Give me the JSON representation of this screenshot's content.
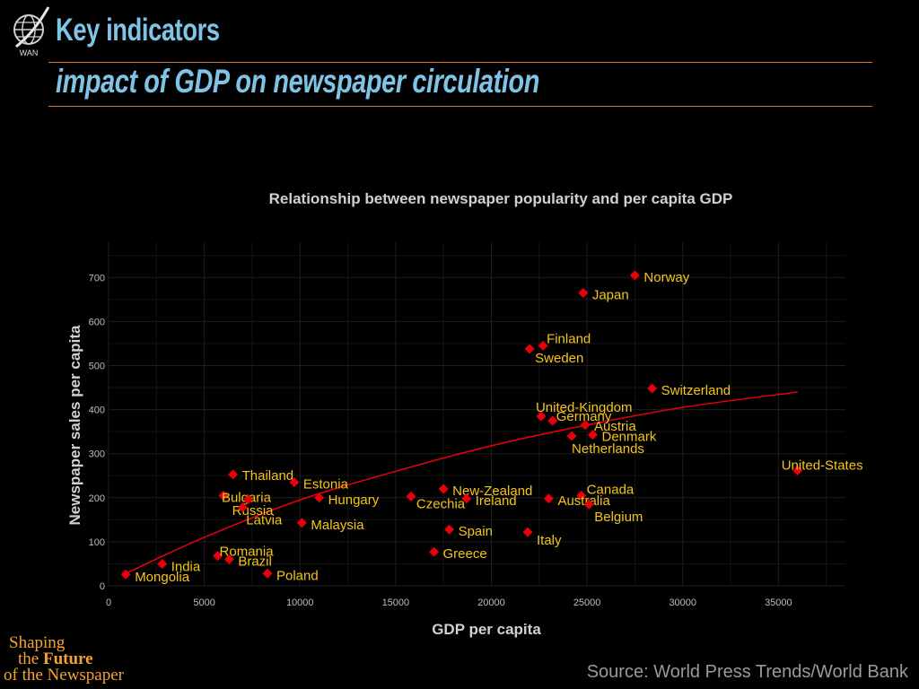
{
  "header": {
    "title": "Key indicators",
    "subtitle": "impact of GDP on newspaper circulation",
    "logo_text": "WAN"
  },
  "footer": {
    "source": "Source: World Press Trends/World Bank",
    "tagline_line1": "Shaping",
    "tagline_line2_prefix": "the",
    "tagline_line2_bold": "Future",
    "tagline_line3": "of the Newspaper"
  },
  "colors": {
    "background": "#000000",
    "title": "#7fc4e6",
    "rule": "#d9772b",
    "point": "#e8000b",
    "label": "#f5c518",
    "trend": "#e8000b",
    "tagline": "#f4a233"
  },
  "chart_data": {
    "type": "scatter",
    "title": "Relationship between newspaper popularity and per capita GDP",
    "xlabel": "GDP per capita",
    "ylabel": "Newspaper sales per capita",
    "xlim": [
      0,
      38500
    ],
    "ylim": [
      0,
      780
    ],
    "grid": true,
    "x_ticks": [
      0,
      5000,
      10000,
      15000,
      20000,
      25000,
      30000,
      35000
    ],
    "y_ticks": [
      0,
      100,
      200,
      300,
      400,
      500,
      600,
      700
    ],
    "points": [
      {
        "label": "Norway",
        "x": 27500,
        "y": 705
      },
      {
        "label": "Japan",
        "x": 24800,
        "y": 665
      },
      {
        "label": "Finland",
        "x": 22700,
        "y": 545
      },
      {
        "label": "Sweden",
        "x": 22000,
        "y": 538
      },
      {
        "label": "Switzerland",
        "x": 28400,
        "y": 448
      },
      {
        "label": "United-Kingdom",
        "x": 22600,
        "y": 385
      },
      {
        "label": "Germany",
        "x": 23200,
        "y": 375
      },
      {
        "label": "Austria",
        "x": 24900,
        "y": 365
      },
      {
        "label": "Denmark",
        "x": 25300,
        "y": 343
      },
      {
        "label": "Netherlands",
        "x": 24200,
        "y": 340
      },
      {
        "label": "United-States",
        "x": 36000,
        "y": 262
      },
      {
        "label": "Canada",
        "x": 24700,
        "y": 205
      },
      {
        "label": "Australia",
        "x": 23000,
        "y": 198
      },
      {
        "label": "Belgium",
        "x": 25100,
        "y": 185
      },
      {
        "label": "New-Zealand",
        "x": 17500,
        "y": 220
      },
      {
        "label": "Ireland",
        "x": 18700,
        "y": 198
      },
      {
        "label": "Czechia",
        "x": 15800,
        "y": 203
      },
      {
        "label": "Spain",
        "x": 17800,
        "y": 128
      },
      {
        "label": "Italy",
        "x": 21900,
        "y": 122
      },
      {
        "label": "Greece",
        "x": 17000,
        "y": 77
      },
      {
        "label": "Thailand",
        "x": 6500,
        "y": 253
      },
      {
        "label": "Estonia",
        "x": 9700,
        "y": 235
      },
      {
        "label": "Hungary",
        "x": 11000,
        "y": 200
      },
      {
        "label": "Bulgaria",
        "x": 6000,
        "y": 205
      },
      {
        "label": "Russia",
        "x": 7300,
        "y": 196
      },
      {
        "label": "Latvia",
        "x": 7000,
        "y": 178
      },
      {
        "label": "Malaysia",
        "x": 10100,
        "y": 143
      },
      {
        "label": "Romania",
        "x": 5700,
        "y": 68
      },
      {
        "label": "Brazil",
        "x": 6300,
        "y": 60
      },
      {
        "label": "Poland",
        "x": 8300,
        "y": 28
      },
      {
        "label": "India",
        "x": 2800,
        "y": 50
      },
      {
        "label": "Mongolia",
        "x": 900,
        "y": 26
      }
    ],
    "trendline": {
      "type": "smooth",
      "points": [
        [
          900,
          28
        ],
        [
          5000,
          110
        ],
        [
          10000,
          195
        ],
        [
          15000,
          260
        ],
        [
          20000,
          318
        ],
        [
          25000,
          365
        ],
        [
          30000,
          405
        ],
        [
          36000,
          440
        ]
      ]
    }
  }
}
